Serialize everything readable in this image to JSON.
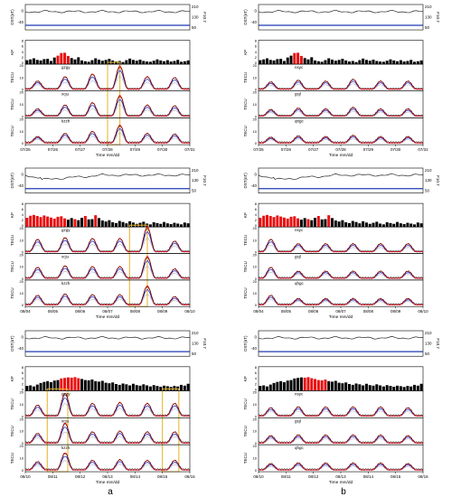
{
  "figure": {
    "col_labels": [
      "a",
      "b"
    ],
    "colors": {
      "trace": "#000000",
      "f107": "#1f3bb3",
      "kp_storm": "#e81010",
      "kp_quiet": "#000000",
      "highlight": "#e8b020",
      "tec_red": "#e81010",
      "tec_blue": "#2233cc",
      "tec_gray": "#9a9a9a"
    }
  },
  "chart_data": [
    {
      "id": "p11",
      "type": "multi-panel-line",
      "dates": [
        "07/25",
        "07/26",
        "07/27",
        "07/28",
        "07/29",
        "07/30",
        "07/31"
      ],
      "xlabel": "Time mm/dd",
      "dst_ylabel": "DST(nT)",
      "f107_ylabel": "F10.7",
      "kp_ylabel": "KP",
      "tec_ylabel": "TECU",
      "dst_ticks": [
        "0",
        "-40"
      ],
      "f107_ticks": [
        "210",
        "130",
        "50"
      ],
      "kp_ticks": [
        "8",
        "6",
        "4",
        "2",
        "0"
      ],
      "tec_ticks": [
        "20",
        "10",
        "0"
      ],
      "stations": [
        "gzgy",
        "xcju",
        "kzzh"
      ],
      "kp_values": [
        1.5,
        1.8,
        2.2,
        1.6,
        1.4,
        1.9,
        2.0,
        1.2,
        2.5,
        3.2,
        4.2,
        4.3,
        3.1,
        2.3,
        1.8,
        2.6,
        1.4,
        1.1,
        0.9,
        1.5,
        2.2,
        1.7,
        1.3,
        1.6,
        2.0,
        1.4,
        1.0,
        1.2,
        0.8,
        1.5,
        2.1,
        1.6,
        1.3,
        1.7,
        1.2,
        1.0,
        0.9,
        1.3,
        1.8,
        1.4,
        1.1,
        1.5,
        1.0,
        1.2,
        1.6,
        0.9,
        1.1,
        1.4
      ],
      "storm_kp": [
        9,
        10,
        11,
        12
      ],
      "tec_peak": [
        9,
        14,
        17,
        26,
        14,
        13,
        12
      ],
      "highlights": [
        {
          "start": 3.0,
          "end": 3.45
        }
      ]
    },
    {
      "id": "p12",
      "type": "multi-panel-line",
      "dates": [
        "07/25",
        "07/26",
        "07/27",
        "07/28",
        "07/29",
        "07/30",
        "07/31"
      ],
      "xlabel": "Time mm/dd",
      "dst_ylabel": "DST(nT)",
      "f107_ylabel": "F10.7",
      "kp_ylabel": "KP",
      "tec_ylabel": "TECU",
      "dst_ticks": [
        "0",
        "-40"
      ],
      "f107_ticks": [
        "210",
        "130",
        "50"
      ],
      "kp_ticks": [
        "8",
        "6",
        "4",
        "2",
        "0"
      ],
      "tec_ticks": [
        "20",
        "10",
        "0"
      ],
      "stations": [
        "nsyc",
        "gsjl",
        "qhgc"
      ],
      "kp_values": [
        1.5,
        1.8,
        2.2,
        1.6,
        1.4,
        1.9,
        2.0,
        1.2,
        2.5,
        3.2,
        4.2,
        4.3,
        3.1,
        2.3,
        1.8,
        2.6,
        1.4,
        1.1,
        0.9,
        1.5,
        2.2,
        1.7,
        1.3,
        1.6,
        2.0,
        1.4,
        1.0,
        1.2,
        0.8,
        1.5,
        2.1,
        1.6,
        1.3,
        1.7,
        1.2,
        1.0,
        0.9,
        1.3,
        1.8,
        1.4,
        1.1,
        1.5,
        1.0,
        1.2,
        1.6,
        0.9,
        1.1,
        1.4
      ],
      "storm_kp": [
        10,
        11,
        12
      ],
      "tec_peak": [
        8,
        10,
        9,
        11,
        9,
        9,
        8
      ],
      "highlights": []
    },
    {
      "id": "p21",
      "type": "multi-panel-line",
      "dates": [
        "08/04",
        "08/05",
        "08/06",
        "08/07",
        "08/08",
        "08/09",
        "08/10"
      ],
      "xlabel": "Time mm/dd",
      "dst_ylabel": "DST(nT)",
      "f107_ylabel": "F10.7",
      "kp_ylabel": "KP",
      "tec_ylabel": "TECU",
      "dst_ticks": [
        "0",
        "-40"
      ],
      "f107_ticks": [
        "210",
        "130",
        "50"
      ],
      "kp_ticks": [
        "8",
        "6",
        "4",
        "2",
        "0"
      ],
      "tec_ticks": [
        "20",
        "10",
        "0"
      ],
      "stations": [
        "gzgy",
        "xcju",
        "kzzh"
      ],
      "kp_values": [
        3.5,
        4.3,
        4.6,
        4.2,
        3.8,
        4.4,
        4.0,
        3.6,
        3.2,
        3.9,
        4.1,
        3.3,
        2.8,
        3.4,
        3.0,
        2.6,
        3.5,
        4.2,
        2.9,
        3.0,
        4.5,
        3.4,
        2.5,
        2.1,
        2.6,
        1.8,
        1.5,
        2.3,
        1.9,
        1.4,
        2.2,
        1.7,
        1.2,
        1.6,
        2.0,
        1.3,
        1.0,
        1.8,
        1.5,
        1.2,
        1.9,
        1.4,
        1.1,
        1.6,
        1.3,
        1.0,
        1.7,
        1.4
      ],
      "storm_kp": [
        0,
        1,
        2,
        3,
        4,
        5,
        6,
        7,
        8,
        9,
        10,
        11,
        14,
        17,
        20
      ],
      "tec_peak": [
        14,
        16,
        15,
        15,
        28,
        12,
        12
      ],
      "highlights": [
        {
          "start": 3.8,
          "end": 4.45
        }
      ]
    },
    {
      "id": "p22",
      "type": "multi-panel-line",
      "dates": [
        "08/04",
        "08/05",
        "08/06",
        "08/07",
        "08/08",
        "08/09",
        "08/10"
      ],
      "xlabel": "Time mm/dd",
      "dst_ylabel": "DST(nT)",
      "f107_ylabel": "F10.7",
      "kp_ylabel": "KP",
      "tec_ylabel": "TECU",
      "dst_ticks": [
        "0",
        "-40"
      ],
      "f107_ticks": [
        "210",
        "130",
        "50"
      ],
      "kp_ticks": [
        "8",
        "6",
        "4",
        "2",
        "0"
      ],
      "tec_ticks": [
        "20",
        "10",
        "0"
      ],
      "stations": [
        "nsyc",
        "gsjl",
        "qhgc"
      ],
      "kp_values": [
        3.5,
        4.3,
        4.6,
        4.2,
        3.8,
        4.4,
        4.0,
        3.6,
        3.2,
        3.9,
        4.1,
        3.3,
        2.8,
        3.4,
        3.0,
        2.6,
        3.5,
        4.2,
        2.9,
        3.0,
        4.5,
        3.4,
        2.5,
        2.1,
        2.6,
        1.8,
        1.5,
        2.3,
        1.9,
        1.4,
        2.2,
        1.7,
        1.2,
        1.6,
        2.0,
        1.3,
        1.0,
        1.8,
        1.5,
        1.2,
        1.9,
        1.4,
        1.1,
        1.6,
        1.3,
        1.0,
        1.7,
        1.4
      ],
      "storm_kp": [
        0,
        1,
        2,
        3,
        4,
        5,
        6,
        7,
        8,
        9,
        10,
        11,
        14,
        17,
        20
      ],
      "tec_peak": [
        14,
        9,
        9,
        9,
        9,
        9,
        8
      ],
      "highlights": []
    },
    {
      "id": "p31",
      "type": "multi-panel-line",
      "dates": [
        "08/10",
        "08/11",
        "08/12",
        "08/13",
        "08/14",
        "08/15",
        "08/16"
      ],
      "xlabel": "Time mm/dd",
      "dst_ylabel": "DST(nT)",
      "f107_ylabel": "F10.7",
      "kp_ylabel": "KP",
      "tec_ylabel": "TECU",
      "dst_ticks": [
        "0",
        "-40"
      ],
      "f107_ticks": [
        "210",
        "130",
        "50"
      ],
      "kp_ticks": [
        "8",
        "6",
        "4",
        "2",
        "0"
      ],
      "tec_ticks": [
        "20",
        "10",
        "0"
      ],
      "stations": [
        "gzgy",
        "xcju",
        "kzzh"
      ],
      "kp_values": [
        1.8,
        2.0,
        1.6,
        2.3,
        2.9,
        3.3,
        3.6,
        3.2,
        3.8,
        4.0,
        4.6,
        4.8,
        5.0,
        4.9,
        5.1,
        4.7,
        4.4,
        4.0,
        3.9,
        4.2,
        3.6,
        3.4,
        3.7,
        3.0,
        2.8,
        3.1,
        2.5,
        2.2,
        2.7,
        2.4,
        2.0,
        2.6,
        2.1,
        1.9,
        2.4,
        2.0,
        1.6,
        2.1,
        1.8,
        1.5,
        1.9,
        1.7,
        1.4,
        1.8,
        1.6,
        2.2,
        1.9,
        2.6
      ],
      "storm_kp": [
        10,
        11,
        12,
        13,
        14,
        15
      ],
      "tec_peak": [
        12,
        25,
        14,
        15,
        14,
        14,
        15
      ],
      "highlights": [
        {
          "start": 0.8,
          "end": 1.55
        },
        {
          "start": 5.0,
          "end": 5.6
        }
      ]
    },
    {
      "id": "p32",
      "type": "multi-panel-line",
      "dates": [
        "08/10",
        "08/11",
        "08/12",
        "08/13",
        "08/14",
        "08/15",
        "08/16"
      ],
      "xlabel": "Time mm/dd",
      "dst_ylabel": "DST(nT)",
      "f107_ylabel": "F10.7",
      "kp_ylabel": "KP",
      "tec_ylabel": "TECU",
      "dst_ticks": [
        "0",
        "-40"
      ],
      "f107_ticks": [
        "210",
        "130",
        "50"
      ],
      "kp_ticks": [
        "8",
        "6",
        "4",
        "2",
        "0"
      ],
      "tec_ticks": [
        "20",
        "10",
        "0"
      ],
      "stations": [
        "nsyc",
        "gsjl",
        "qhgc"
      ],
      "kp_values": [
        1.8,
        2.0,
        1.6,
        2.3,
        2.9,
        3.3,
        3.6,
        3.2,
        3.8,
        4.0,
        4.6,
        4.8,
        5.0,
        4.9,
        5.1,
        4.7,
        4.4,
        4.0,
        3.9,
        4.2,
        3.6,
        3.4,
        3.7,
        3.0,
        2.8,
        3.1,
        2.5,
        2.2,
        2.7,
        2.4,
        2.0,
        2.6,
        2.1,
        1.9,
        2.4,
        2.0,
        1.6,
        2.1,
        1.8,
        1.5,
        1.9,
        1.7,
        1.4,
        1.8,
        1.6,
        2.2,
        1.9,
        2.6
      ],
      "storm_kp": [
        13,
        14,
        15,
        16,
        17,
        18,
        19
      ],
      "tec_peak": [
        9,
        10,
        10,
        10,
        10,
        9,
        9
      ],
      "highlights": []
    }
  ]
}
